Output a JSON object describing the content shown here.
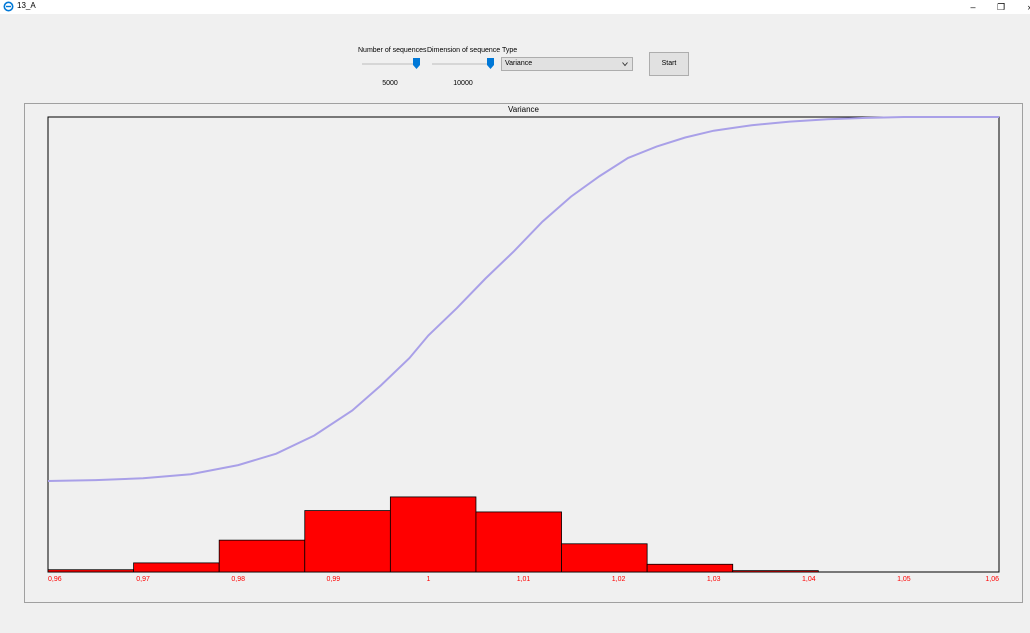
{
  "window": {
    "title": "13_A",
    "minimize_glyph": "–",
    "maximize_glyph": "❐",
    "close_glyph": "›"
  },
  "controls": {
    "num_sequences": {
      "label": "Number of sequences",
      "value": "5000",
      "level": 1.0
    },
    "dim_sequence": {
      "label": "Dimension of sequence",
      "value": "10000",
      "level": 1.0
    },
    "type": {
      "label": "Type",
      "selected": "Variance"
    },
    "start_label": "Start"
  },
  "colors": {
    "bar_fill": "#ff0000",
    "cdf_line": "#a9a0e8",
    "accent": "#0078d7"
  },
  "chart_data": {
    "type": "bar",
    "title": "Variance",
    "xlim": [
      0.96,
      1.06
    ],
    "ylim": [
      0,
      1
    ],
    "tick_labels": [
      "0,96",
      "0,97",
      "0,98",
      "0,99",
      "1",
      "1,01",
      "1,02",
      "1,03",
      "1,04",
      "1,05",
      "1,06"
    ],
    "tick_values": [
      0.96,
      0.97,
      0.98,
      0.99,
      1.0,
      1.01,
      1.02,
      1.03,
      1.04,
      1.05,
      1.06
    ],
    "histogram": {
      "bin_edges": [
        0.96,
        0.969,
        0.978,
        0.987,
        0.996,
        1.005,
        1.014,
        1.023,
        1.032,
        1.041,
        1.05
      ],
      "values": [
        0.005,
        0.02,
        0.07,
        0.135,
        0.165,
        0.132,
        0.062,
        0.017,
        0.003,
        0.0
      ],
      "color": "#ff0000"
    },
    "cdf": {
      "color": "#a9a0e8",
      "x": [
        0.96,
        0.965,
        0.97,
        0.975,
        0.98,
        0.984,
        0.988,
        0.992,
        0.995,
        0.998,
        1.0,
        1.003,
        1.006,
        1.009,
        1.012,
        1.015,
        1.018,
        1.021,
        1.024,
        1.027,
        1.03,
        1.034,
        1.038,
        1.042,
        1.046,
        1.05,
        1.06
      ],
      "y": [
        0.2,
        0.202,
        0.206,
        0.215,
        0.235,
        0.26,
        0.3,
        0.355,
        0.41,
        0.47,
        0.52,
        0.58,
        0.645,
        0.705,
        0.77,
        0.825,
        0.87,
        0.91,
        0.935,
        0.955,
        0.97,
        0.982,
        0.99,
        0.995,
        0.998,
        1.0,
        1.0
      ]
    },
    "grid": false,
    "legend": "none"
  }
}
